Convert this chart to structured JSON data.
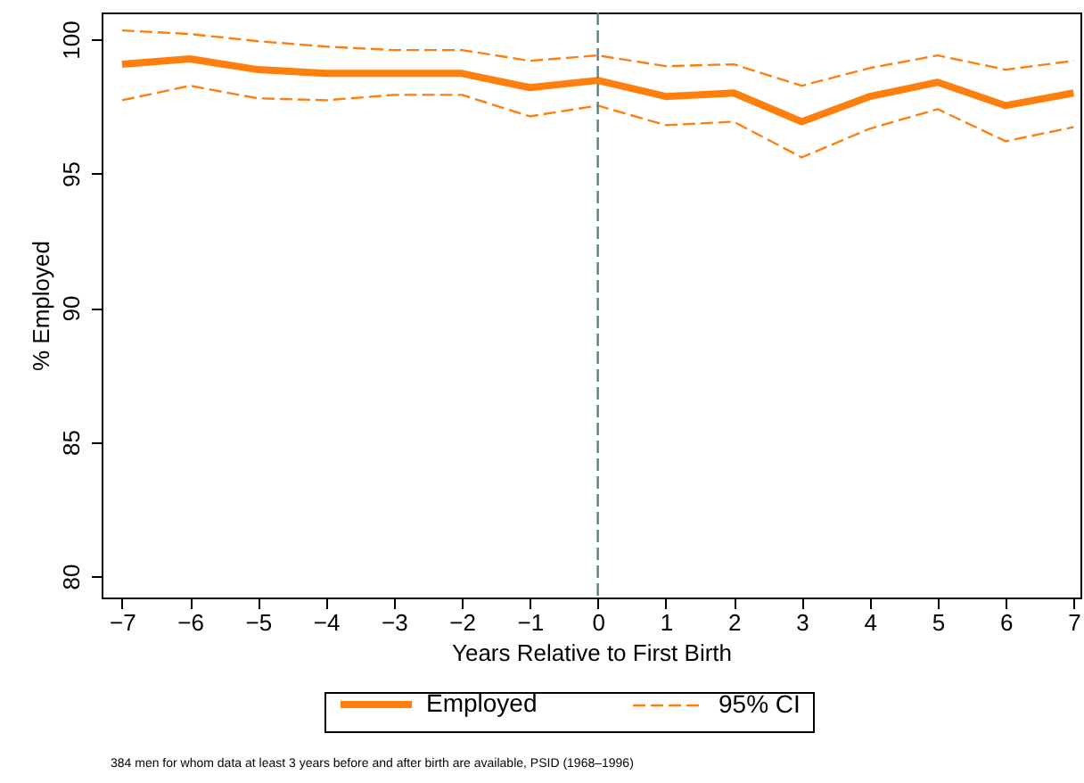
{
  "chart_data": {
    "type": "line",
    "xlabel": "Years Relative to First Birth",
    "ylabel": "% Employed",
    "x": [
      -7,
      -6,
      -5,
      -4,
      -3,
      -2,
      -1,
      0,
      1,
      2,
      3,
      4,
      5,
      6,
      7
    ],
    "series": [
      {
        "name": "Employed",
        "color": "#ff7f0e",
        "line_style": "solid",
        "values": [
          99.07,
          99.27,
          98.87,
          98.73,
          98.73,
          98.73,
          98.2,
          98.47,
          97.87,
          98.0,
          96.93,
          97.87,
          98.4,
          97.53,
          98.0
        ]
      },
      {
        "name": "95% CI",
        "color": "#ff7f0e",
        "line_style": "dashed",
        "values": [
          100.33,
          100.2,
          99.93,
          99.73,
          99.6,
          99.6,
          99.2,
          99.4,
          99.0,
          99.07,
          98.27,
          98.93,
          99.4,
          98.87,
          99.2
        ]
      },
      {
        "color": "#ff7f0e",
        "line_style": "dashed",
        "values": [
          97.73,
          98.27,
          97.8,
          97.73,
          97.93,
          97.93,
          97.13,
          97.53,
          96.8,
          96.93,
          95.6,
          96.67,
          97.4,
          96.2,
          96.73
        ]
      }
    ],
    "xlim": [
      -7.3,
      7.1
    ],
    "xticks": [
      -7,
      -6,
      -5,
      -4,
      -3,
      -2,
      -1,
      0,
      1,
      2,
      3,
      4,
      5,
      6,
      7
    ],
    "ylim": [
      79.2,
      101
    ],
    "yticks": [
      80,
      85,
      90,
      95,
      100
    ],
    "grid": false,
    "legend": "bottom",
    "ref_lines": [
      {
        "axis": "x",
        "value": 0,
        "color": "#5f7f7f",
        "line_style": "dashed"
      }
    ],
    "annotations": [
      "384 men for whom data at least 3 years before and after birth are available, PSID (1968–1996)"
    ]
  }
}
